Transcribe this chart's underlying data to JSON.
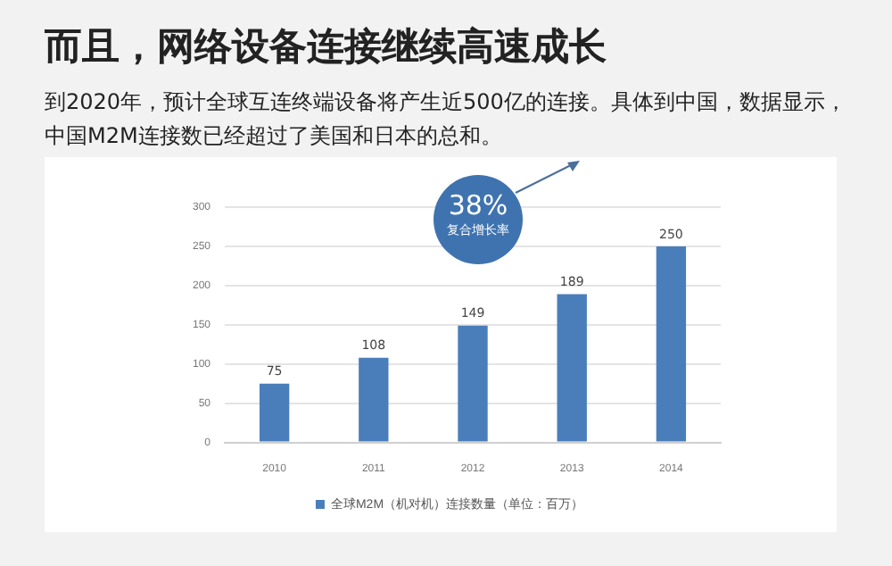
{
  "chart_data": {
    "type": "bar",
    "title": "而且，网络设备连接继续高速成长",
    "subtitle": "到2020年，预计全球互连终端设备将产生近500亿的连接。具体到中国，数据显示，中国M2M连接数已经超过了美国和日本的总和。",
    "categories": [
      "2010",
      "2011",
      "2012",
      "2013",
      "2014"
    ],
    "series": [
      {
        "name": "全球M2M（机对机）连接数量（单位：百万）",
        "color": "#4a7ebb",
        "values": [
          75,
          108,
          149,
          189,
          250
        ]
      }
    ],
    "ylim": [
      0,
      300
    ],
    "yticks": [
      0,
      50,
      100,
      150,
      200,
      250,
      300
    ],
    "grid": "y",
    "legend": "bottom",
    "data_labels": true,
    "annotations": [
      "38%",
      "复合增长率"
    ]
  }
}
